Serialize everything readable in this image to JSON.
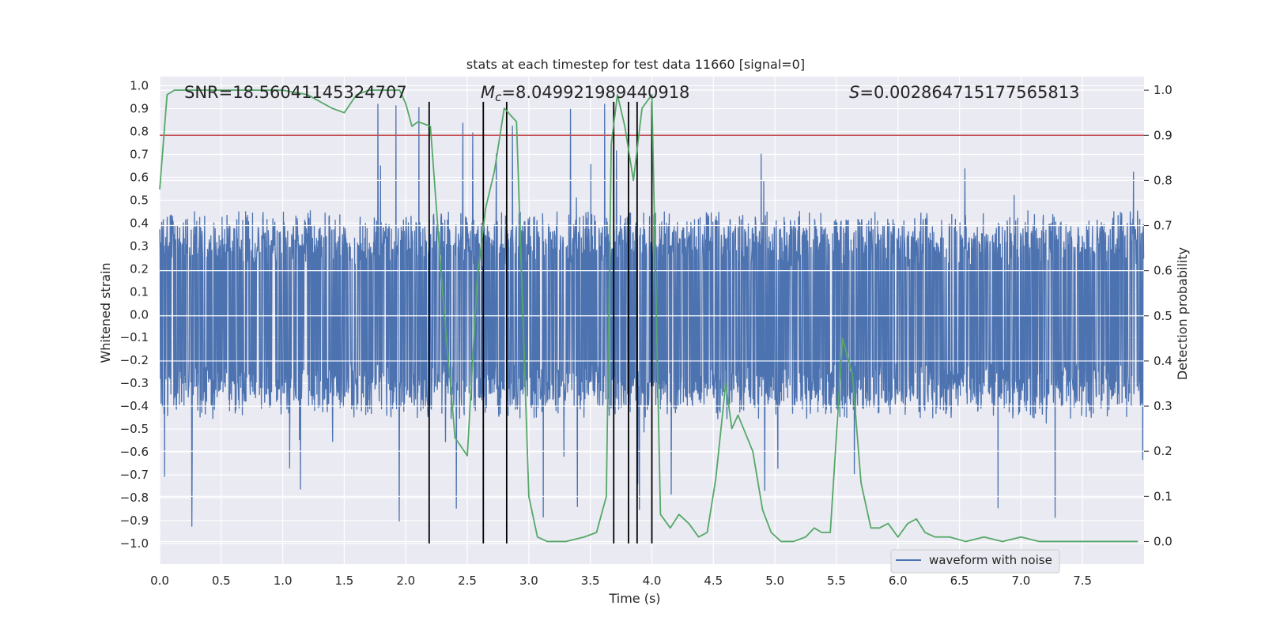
{
  "chart_data": {
    "type": "line",
    "title": "stats at each timestep for test data 11660 [signal=0]",
    "xlabel": "Time (s)",
    "ylabel": "Whitened strain",
    "ylabel_right": "Detection probability",
    "xlim": [
      0.0,
      8.0
    ],
    "ylim": [
      -1.09,
      1.04
    ],
    "ylim_right": [
      -0.05,
      1.03
    ],
    "x_ticks": [
      "0.0",
      "0.5",
      "1.0",
      "1.5",
      "2.0",
      "2.5",
      "3.0",
      "3.5",
      "4.0",
      "4.5",
      "5.0",
      "5.5",
      "6.0",
      "6.5",
      "7.0",
      "7.5"
    ],
    "y_ticks": [
      "1.0",
      "0.9",
      "0.8",
      "0.7",
      "0.6",
      "0.5",
      "0.4",
      "0.3",
      "0.2",
      "0.1",
      "0.0",
      "−0.1",
      "−0.2",
      "−0.3",
      "−0.4",
      "−0.5",
      "−0.6",
      "−0.7",
      "−0.8",
      "−0.9",
      "−1.0"
    ],
    "y_right_ticks": [
      "1.0",
      "0.9",
      "0.8",
      "0.7",
      "0.6",
      "0.5",
      "0.4",
      "0.3",
      "0.2",
      "0.1",
      "0.0"
    ],
    "grid": true,
    "legend_position": "lower-right",
    "annotations": {
      "snr": "SNR=18.56041145324707",
      "mc_symbol": "M",
      "mc_sub": "c",
      "mc_value": "=8.049921989440918",
      "s_symbol": "S",
      "s_value": "=0.002864715177565813"
    },
    "threshold": {
      "value": 0.9,
      "axis": "right",
      "color": "#c44e52"
    },
    "vertical_lines": [
      2.19,
      2.63,
      2.82,
      3.69,
      3.81,
      3.88,
      4.0
    ],
    "vertical_line_range": [
      -1.0,
      0.93
    ],
    "series": [
      {
        "name": "waveform with noise",
        "axis": "left",
        "color": "#4c72b0",
        "seed": 11660,
        "n_samples": 3000,
        "typical_amplitude": 0.45,
        "peak_amplitude": 0.93
      },
      {
        "axis": "right",
        "color": "#55a868",
        "x": [
          0.0,
          0.06,
          0.12,
          0.3,
          0.5,
          0.8,
          1.0,
          1.2,
          1.4,
          1.5,
          1.6,
          1.7,
          1.8,
          1.95,
          2.0,
          2.05,
          2.1,
          2.2,
          2.3,
          2.4,
          2.5,
          2.58,
          2.65,
          2.72,
          2.8,
          2.9,
          3.0,
          3.07,
          3.15,
          3.3,
          3.45,
          3.55,
          3.63,
          3.67,
          3.72,
          3.78,
          3.85,
          3.92,
          4.0,
          4.07,
          4.15,
          4.22,
          4.3,
          4.38,
          4.45,
          4.52,
          4.6,
          4.65,
          4.7,
          4.76,
          4.82,
          4.9,
          4.97,
          5.05,
          5.15,
          5.25,
          5.32,
          5.38,
          5.45,
          5.55,
          5.63,
          5.7,
          5.78,
          5.85,
          5.92,
          6.0,
          6.08,
          6.15,
          6.22,
          6.3,
          6.42,
          6.55,
          6.7,
          6.85,
          7.0,
          7.15,
          7.3,
          7.5,
          7.7,
          7.85,
          7.95
        ],
        "y": [
          0.78,
          0.99,
          1.0,
          1.0,
          1.0,
          1.0,
          1.0,
          0.99,
          0.96,
          0.95,
          0.99,
          1.0,
          1.0,
          1.0,
          0.97,
          0.92,
          0.93,
          0.92,
          0.55,
          0.23,
          0.19,
          0.58,
          0.74,
          0.82,
          0.96,
          0.93,
          0.1,
          0.01,
          0.0,
          0.0,
          0.01,
          0.02,
          0.1,
          0.88,
          0.99,
          0.92,
          0.8,
          0.96,
          0.99,
          0.06,
          0.03,
          0.06,
          0.04,
          0.01,
          0.02,
          0.14,
          0.35,
          0.25,
          0.28,
          0.24,
          0.2,
          0.07,
          0.02,
          0.0,
          0.0,
          0.01,
          0.03,
          0.02,
          0.02,
          0.45,
          0.37,
          0.13,
          0.03,
          0.03,
          0.04,
          0.01,
          0.04,
          0.05,
          0.02,
          0.01,
          0.01,
          0.0,
          0.01,
          0.0,
          0.01,
          0.0,
          0.0,
          0.0,
          0.0,
          0.0,
          0.0
        ]
      }
    ]
  }
}
